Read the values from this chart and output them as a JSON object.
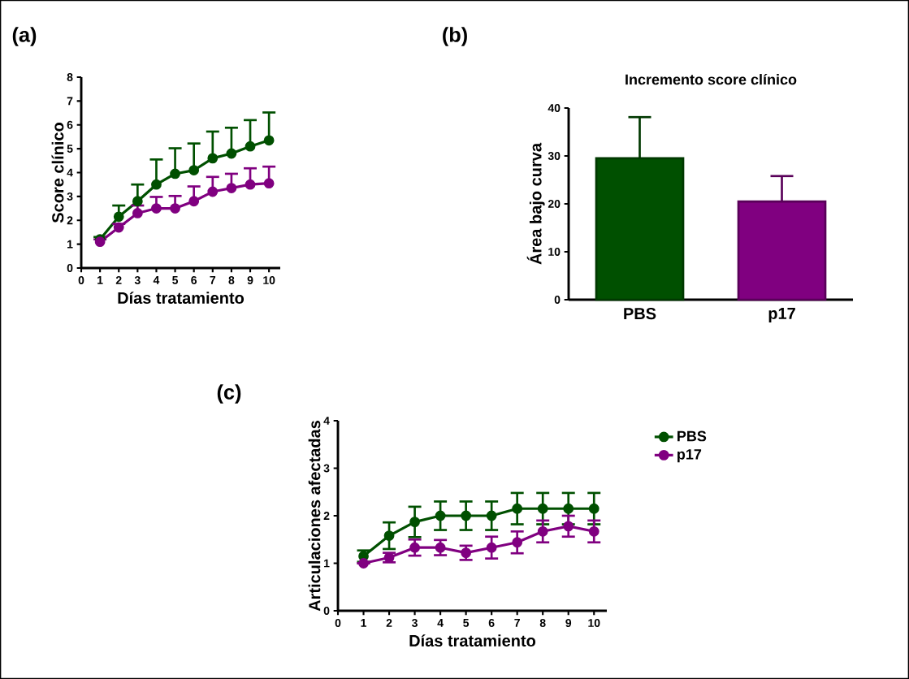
{
  "chart_data": [
    {
      "type": "line",
      "xlabel": "Días tratamiento",
      "ylabel": "Score clínico",
      "annotations": [
        "(a)"
      ],
      "marker": "circle",
      "line_style": "solid",
      "x": [
        1,
        2,
        3,
        4,
        5,
        6,
        7,
        8,
        9,
        10
      ],
      "xlim": [
        0,
        10.6
      ],
      "xticks": [
        0,
        1,
        2,
        3,
        4,
        5,
        6,
        7,
        8,
        9,
        10
      ],
      "ylim": [
        0,
        8
      ],
      "yticks": [
        0,
        1,
        2,
        3,
        4,
        5,
        6,
        7,
        8
      ],
      "series": [
        {
          "color": "#005000",
          "values": [
            1.2,
            2.15,
            2.8,
            3.5,
            3.95,
            4.1,
            4.6,
            4.8,
            5.1,
            5.35
          ],
          "errors": [
            [
              1.2,
              1.3
            ],
            [
              2.15,
              2.62
            ],
            [
              2.8,
              3.5
            ],
            [
              3.5,
              4.55
            ],
            [
              3.95,
              5.02
            ],
            [
              4.1,
              5.22
            ],
            [
              4.6,
              5.72
            ],
            [
              4.8,
              5.88
            ],
            [
              5.1,
              6.2
            ],
            [
              5.35,
              6.52
            ]
          ]
        },
        {
          "color": "#800080",
          "values": [
            1.1,
            1.7,
            2.3,
            2.5,
            2.5,
            2.8,
            3.2,
            3.35,
            3.5,
            3.55
          ],
          "errors": [
            [
              1.1,
              1.2
            ],
            [
              1.7,
              1.85
            ],
            [
              2.3,
              2.62
            ],
            [
              2.5,
              2.98
            ],
            [
              2.5,
              3.02
            ],
            [
              2.8,
              3.42
            ],
            [
              3.2,
              3.82
            ],
            [
              3.35,
              3.95
            ],
            [
              3.5,
              4.18
            ],
            [
              3.55,
              4.25
            ]
          ]
        }
      ]
    },
    {
      "type": "bar",
      "title": "Incremento score clínico",
      "ylabel": "Área bajo curva",
      "annotations": [
        "(b)"
      ],
      "categories": [
        "PBS",
        "p17"
      ],
      "values": [
        29.5,
        20.5
      ],
      "colors": [
        "#005000",
        "#800080"
      ],
      "errors": [
        [
          29.5,
          38.1
        ],
        [
          20.5,
          25.8
        ]
      ],
      "ylim": [
        0,
        40
      ],
      "yticks": [
        0,
        10,
        20,
        30,
        40
      ]
    },
    {
      "type": "line",
      "xlabel": "Días tratamiento",
      "ylabel": "Articulaciones afectadas",
      "annotations": [
        "(c)"
      ],
      "marker": "circle",
      "line_style": "solid",
      "legend": "right",
      "x": [
        1,
        2,
        3,
        4,
        5,
        6,
        7,
        8,
        9,
        10
      ],
      "xlim": [
        0,
        10.5
      ],
      "xticks": [
        0,
        1,
        2,
        3,
        4,
        5,
        6,
        7,
        8,
        9,
        10
      ],
      "ylim": [
        0,
        4
      ],
      "yticks": [
        0,
        1,
        2,
        3,
        4
      ],
      "series": [
        {
          "name": "PBS",
          "color": "#005000",
          "values": [
            1.15,
            1.58,
            1.87,
            2.0,
            2.0,
            2.0,
            2.15,
            2.15,
            2.15,
            2.15
          ],
          "errors": [
            0.12,
            0.28,
            0.32,
            0.3,
            0.3,
            0.3,
            0.33,
            0.33,
            0.33,
            0.33
          ]
        },
        {
          "name": "p17",
          "color": "#800080",
          "values": [
            1.0,
            1.12,
            1.33,
            1.33,
            1.22,
            1.33,
            1.44,
            1.67,
            1.78,
            1.67
          ],
          "errors": [
            0.0,
            0.1,
            0.17,
            0.16,
            0.15,
            0.23,
            0.23,
            0.23,
            0.22,
            0.23
          ]
        }
      ]
    }
  ]
}
